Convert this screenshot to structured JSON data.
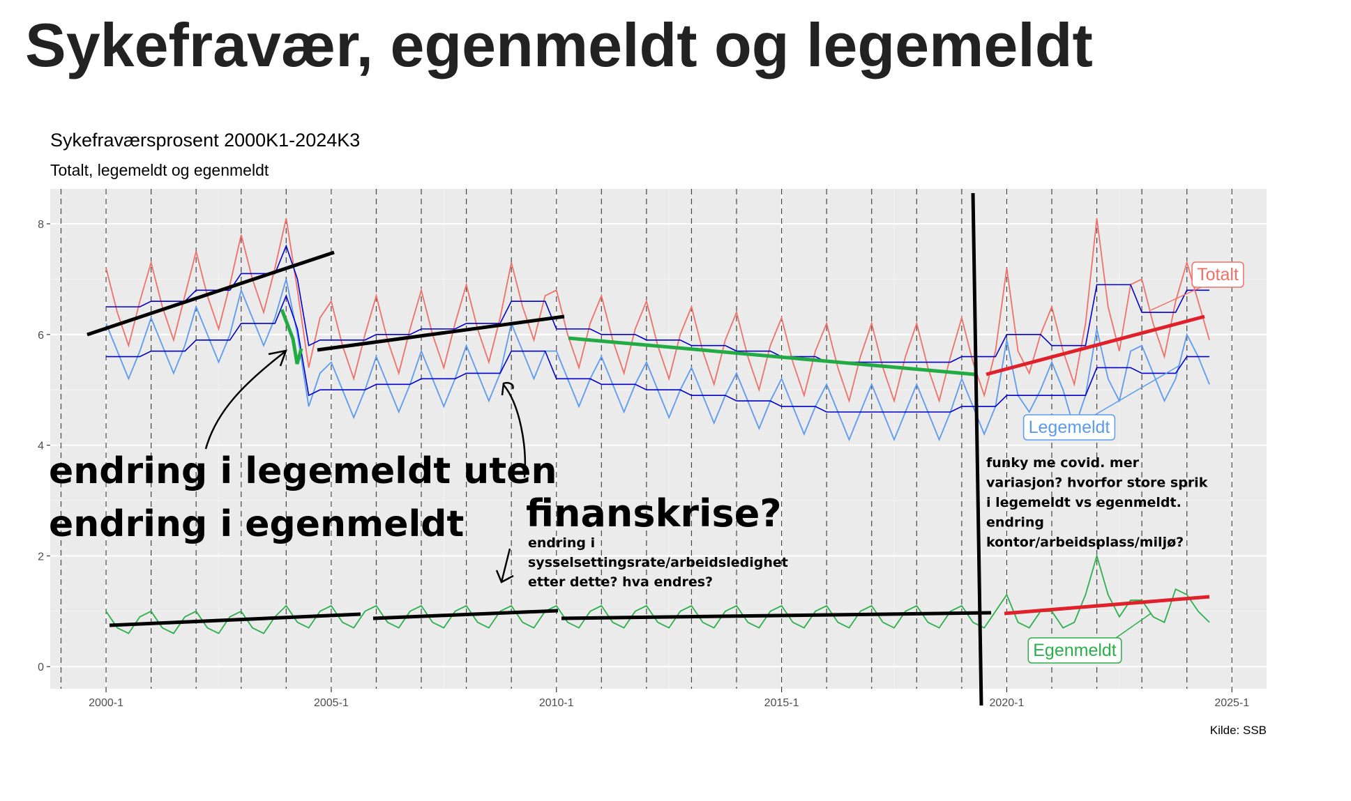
{
  "heading": "Sykefravær, egenmeldt og legemeldt",
  "chart_data": {
    "type": "line",
    "title": "Sykefraværsprosent 2000K1-2024K3",
    "subtitle": "Totalt, legemeldt og egenmeldt",
    "caption": "Kilde: SSB",
    "x": [
      2000,
      2000.25,
      2000.5,
      2000.75,
      2001,
      2001.25,
      2001.5,
      2001.75,
      2002,
      2002.25,
      2002.5,
      2002.75,
      2003,
      2003.25,
      2003.5,
      2003.75,
      2004,
      2004.25,
      2004.5,
      2004.75,
      2005,
      2005.25,
      2005.5,
      2005.75,
      2006,
      2006.25,
      2006.5,
      2006.75,
      2007,
      2007.25,
      2007.5,
      2007.75,
      2008,
      2008.25,
      2008.5,
      2008.75,
      2009,
      2009.25,
      2009.5,
      2009.75,
      2010,
      2010.25,
      2010.5,
      2010.75,
      2011,
      2011.25,
      2011.5,
      2011.75,
      2012,
      2012.25,
      2012.5,
      2012.75,
      2013,
      2013.25,
      2013.5,
      2013.75,
      2014,
      2014.25,
      2014.5,
      2014.75,
      2015,
      2015.25,
      2015.5,
      2015.75,
      2016,
      2016.25,
      2016.5,
      2016.75,
      2017,
      2017.25,
      2017.5,
      2017.75,
      2018,
      2018.25,
      2018.5,
      2018.75,
      2019,
      2019.25,
      2019.5,
      2019.75,
      2020,
      2020.25,
      2020.5,
      2020.75,
      2021,
      2021.25,
      2021.5,
      2021.75,
      2022,
      2022.25,
      2022.5,
      2022.75,
      2023,
      2023.25,
      2023.5,
      2023.75,
      2024,
      2024.25,
      2024.5
    ],
    "series": [
      {
        "name": "Totalt",
        "color": "#f07068",
        "values": [
          7.2,
          6.4,
          5.8,
          6.6,
          7.3,
          6.5,
          5.9,
          6.7,
          7.5,
          6.7,
          6.1,
          6.9,
          7.8,
          7.0,
          6.4,
          7.2,
          8.1,
          6.8,
          5.4,
          6.3,
          6.6,
          5.8,
          5.2,
          6.0,
          6.7,
          5.9,
          5.3,
          6.1,
          6.8,
          6.0,
          5.4,
          6.2,
          6.9,
          6.1,
          5.5,
          6.3,
          7.3,
          6.5,
          5.9,
          6.7,
          6.8,
          6.0,
          5.4,
          6.2,
          6.7,
          5.9,
          5.3,
          6.1,
          6.6,
          5.8,
          5.2,
          6.0,
          6.5,
          5.7,
          5.1,
          5.9,
          6.4,
          5.6,
          5.0,
          5.8,
          6.3,
          5.5,
          4.9,
          5.7,
          6.2,
          5.4,
          4.8,
          5.6,
          6.2,
          5.4,
          4.8,
          5.6,
          6.2,
          5.4,
          4.8,
          5.6,
          6.3,
          5.5,
          4.9,
          5.7,
          7.2,
          5.7,
          5.3,
          6.0,
          6.5,
          5.7,
          5.1,
          6.2,
          8.1,
          6.5,
          5.7,
          6.9,
          7.0,
          6.2,
          5.6,
          6.6,
          7.3,
          6.6,
          5.9
        ]
      },
      {
        "name": "Legemeldt",
        "color": "#5b9bef",
        "values": [
          6.2,
          5.7,
          5.2,
          5.7,
          6.3,
          5.8,
          5.3,
          5.8,
          6.5,
          6.0,
          5.5,
          6.0,
          6.8,
          6.3,
          5.8,
          6.3,
          7.0,
          6.0,
          4.7,
          5.3,
          5.5,
          5.0,
          4.5,
          5.0,
          5.6,
          5.1,
          4.6,
          5.1,
          5.7,
          5.2,
          4.7,
          5.2,
          5.8,
          5.3,
          4.8,
          5.3,
          6.2,
          5.7,
          5.2,
          5.7,
          5.7,
          5.2,
          4.7,
          5.2,
          5.6,
          5.1,
          4.6,
          5.1,
          5.5,
          5.0,
          4.5,
          5.0,
          5.4,
          4.9,
          4.4,
          4.9,
          5.3,
          4.8,
          4.3,
          4.8,
          5.2,
          4.7,
          4.2,
          4.7,
          5.1,
          4.6,
          4.1,
          4.6,
          5.1,
          4.6,
          4.1,
          4.6,
          5.1,
          4.6,
          4.1,
          4.6,
          5.2,
          4.7,
          4.2,
          4.7,
          5.9,
          4.9,
          4.6,
          5.0,
          5.5,
          5.0,
          4.3,
          4.9,
          6.1,
          5.2,
          4.8,
          5.7,
          5.8,
          5.3,
          4.8,
          5.2,
          6.0,
          5.6,
          5.1
        ]
      },
      {
        "name": "Egenmeldt",
        "color": "#2ab04a",
        "values": [
          1.0,
          0.7,
          0.6,
          0.9,
          1.0,
          0.7,
          0.6,
          0.9,
          1.0,
          0.7,
          0.6,
          0.9,
          1.0,
          0.7,
          0.6,
          0.9,
          1.1,
          0.8,
          0.7,
          1.0,
          1.1,
          0.8,
          0.7,
          1.0,
          1.1,
          0.8,
          0.7,
          1.0,
          1.1,
          0.8,
          0.7,
          1.0,
          1.1,
          0.8,
          0.7,
          1.0,
          1.1,
          0.8,
          0.7,
          1.0,
          1.1,
          0.8,
          0.7,
          1.0,
          1.1,
          0.8,
          0.7,
          1.0,
          1.1,
          0.8,
          0.7,
          1.0,
          1.1,
          0.8,
          0.7,
          1.0,
          1.1,
          0.8,
          0.7,
          1.0,
          1.1,
          0.8,
          0.7,
          1.0,
          1.1,
          0.8,
          0.7,
          1.0,
          1.1,
          0.8,
          0.7,
          1.0,
          1.1,
          0.8,
          0.7,
          1.0,
          1.1,
          0.8,
          0.7,
          1.0,
          1.3,
          0.8,
          0.7,
          1.0,
          1.0,
          0.7,
          0.8,
          1.3,
          2.0,
          1.3,
          0.9,
          1.2,
          1.2,
          0.9,
          0.8,
          1.4,
          1.3,
          1.0,
          0.8
        ]
      },
      {
        "color": "#0000cc",
        "values": [
          6.5,
          6.5,
          6.5,
          6.5,
          6.6,
          6.6,
          6.6,
          6.6,
          6.8,
          6.8,
          6.8,
          6.8,
          7.1,
          7.1,
          7.1,
          7.1,
          7.6,
          7.0,
          5.8,
          5.9,
          5.9,
          5.9,
          5.9,
          5.9,
          6.0,
          6.0,
          6.0,
          6.0,
          6.1,
          6.1,
          6.1,
          6.1,
          6.2,
          6.2,
          6.2,
          6.2,
          6.6,
          6.6,
          6.6,
          6.6,
          6.1,
          6.1,
          6.1,
          6.1,
          6.0,
          6.0,
          6.0,
          6.0,
          5.9,
          5.9,
          5.9,
          5.9,
          5.8,
          5.8,
          5.8,
          5.8,
          5.7,
          5.7,
          5.7,
          5.7,
          5.6,
          5.6,
          5.6,
          5.6,
          5.5,
          5.5,
          5.5,
          5.5,
          5.5,
          5.5,
          5.5,
          5.5,
          5.5,
          5.5,
          5.5,
          5.5,
          5.6,
          5.6,
          5.6,
          5.6,
          6.0,
          6.0,
          6.0,
          6.0,
          5.8,
          5.8,
          5.8,
          5.8,
          6.9,
          6.9,
          6.9,
          6.9,
          6.4,
          6.4,
          6.4,
          6.4,
          6.8,
          6.8,
          6.8
        ]
      },
      {
        "color": "#0000cc",
        "values": [
          5.6,
          5.6,
          5.6,
          5.6,
          5.7,
          5.7,
          5.7,
          5.7,
          5.9,
          5.9,
          5.9,
          5.9,
          6.2,
          6.2,
          6.2,
          6.2,
          6.7,
          6.1,
          4.9,
          5.0,
          5.0,
          5.0,
          5.0,
          5.0,
          5.1,
          5.1,
          5.1,
          5.1,
          5.2,
          5.2,
          5.2,
          5.2,
          5.3,
          5.3,
          5.3,
          5.3,
          5.7,
          5.7,
          5.7,
          5.7,
          5.2,
          5.2,
          5.2,
          5.2,
          5.1,
          5.1,
          5.1,
          5.1,
          5.0,
          5.0,
          5.0,
          5.0,
          4.9,
          4.9,
          4.9,
          4.9,
          4.8,
          4.8,
          4.8,
          4.8,
          4.7,
          4.7,
          4.7,
          4.7,
          4.6,
          4.6,
          4.6,
          4.6,
          4.6,
          4.6,
          4.6,
          4.6,
          4.6,
          4.6,
          4.6,
          4.6,
          4.7,
          4.7,
          4.7,
          4.7,
          4.9,
          4.9,
          4.9,
          4.9,
          4.9,
          4.9,
          4.9,
          4.9,
          5.4,
          5.4,
          5.4,
          5.4,
          5.3,
          5.3,
          5.3,
          5.3,
          5.6,
          5.6,
          5.6
        ]
      }
    ],
    "xlim": [
      1998.76,
      2025.77
    ],
    "xticks": [
      {
        "value": 2000,
        "label": "2000-1"
      },
      {
        "value": 2005,
        "label": "2005-1"
      },
      {
        "value": 2010,
        "label": "2010-1"
      },
      {
        "value": 2015,
        "label": "2015-1"
      },
      {
        "value": 2020,
        "label": "2020-1"
      },
      {
        "value": 2025,
        "label": "2025-1"
      }
    ],
    "ylim": [
      -0.4,
      8.63
    ],
    "yticks": [
      0,
      2,
      4,
      6,
      8
    ],
    "grid": true,
    "annotations": {
      "legemeldt": [
        "endring i legemeldt uten",
        "endring i egenmeldt"
      ],
      "finanskrise": "finanskrise?",
      "sysselsetting": [
        "endring i",
        "sysselsettingsrate/arbeidsledighet",
        "etter dette? hva endres?"
      ],
      "covid": [
        "funky me covid. mer",
        "variasjon? hvorfor store sprik",
        "i legemeldt vs egenmeldt.",
        "endring",
        "kontor/arbeidsplass/miljø?"
      ]
    }
  }
}
